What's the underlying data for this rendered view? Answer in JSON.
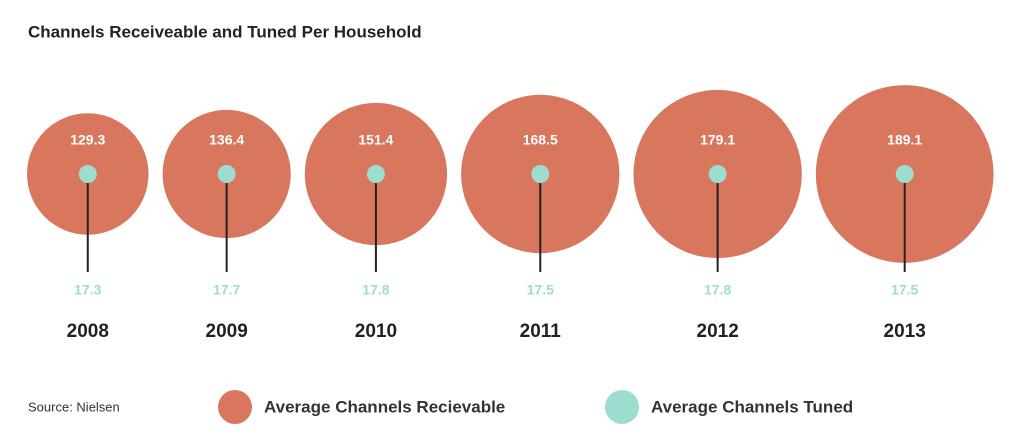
{
  "chart_data": {
    "type": "bubble",
    "title": "Channels Receiveable and Tuned Per Household",
    "categories": [
      "2008",
      "2009",
      "2010",
      "2011",
      "2012",
      "2013"
    ],
    "series": [
      {
        "name": "Average Channels Recievable",
        "color": "#d9765e",
        "values": [
          129.3,
          136.4,
          151.4,
          168.5,
          179.1,
          189.1
        ]
      },
      {
        "name": "Average Channels Tuned",
        "color": "#9dddd0",
        "values": [
          17.3,
          17.7,
          17.8,
          17.5,
          17.8,
          17.5
        ]
      }
    ],
    "source": "Source: Nielsen"
  }
}
